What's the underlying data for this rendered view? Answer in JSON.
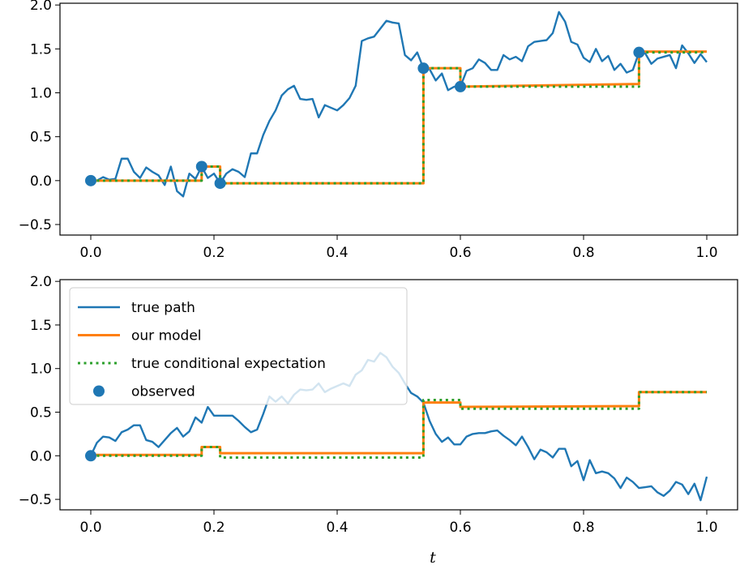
{
  "chart_data": [
    {
      "type": "line",
      "title": "",
      "xlabel": "",
      "ylabel": "",
      "xlim": [
        -0.05,
        1.05
      ],
      "ylim": [
        -0.62,
        2.02
      ],
      "xticks": [
        0.0,
        0.2,
        0.4,
        0.6,
        0.8,
        1.0
      ],
      "xtick_labels": [
        "0.0",
        "0.2",
        "0.4",
        "0.6",
        "0.8",
        "1.0"
      ],
      "yticks": [
        -0.5,
        0.0,
        0.5,
        1.0,
        1.5,
        2.0
      ],
      "ytick_labels": [
        "−0.5",
        "0.0",
        "0.5",
        "1.0",
        "1.5",
        "2.0"
      ],
      "grid": false,
      "series": [
        {
          "name": "true path",
          "kind": "line",
          "color": "#1f77b4",
          "x": [
            0.0,
            0.01,
            0.02,
            0.03,
            0.04,
            0.05,
            0.06,
            0.07,
            0.08,
            0.09,
            0.1,
            0.11,
            0.12,
            0.13,
            0.14,
            0.15,
            0.16,
            0.17,
            0.18,
            0.19,
            0.2,
            0.21,
            0.22,
            0.23,
            0.24,
            0.25,
            0.26,
            0.27,
            0.28,
            0.29,
            0.3,
            0.31,
            0.32,
            0.33,
            0.34,
            0.35,
            0.36,
            0.37,
            0.38,
            0.39,
            0.4,
            0.41,
            0.42,
            0.43,
            0.44,
            0.45,
            0.46,
            0.47,
            0.48,
            0.49,
            0.5,
            0.51,
            0.52,
            0.53,
            0.54,
            0.55,
            0.56,
            0.57,
            0.58,
            0.59,
            0.6,
            0.61,
            0.62,
            0.63,
            0.64,
            0.65,
            0.66,
            0.67,
            0.68,
            0.69,
            0.7,
            0.71,
            0.72,
            0.73,
            0.74,
            0.75,
            0.76,
            0.77,
            0.78,
            0.79,
            0.8,
            0.81,
            0.82,
            0.83,
            0.84,
            0.85,
            0.86,
            0.87,
            0.88,
            0.89,
            0.9,
            0.91,
            0.92,
            0.93,
            0.94,
            0.95,
            0.96,
            0.97,
            0.98,
            0.99,
            1.0
          ],
          "y": [
            0.0,
            0.0,
            0.04,
            0.01,
            0.02,
            0.25,
            0.25,
            0.1,
            0.03,
            0.15,
            0.1,
            0.06,
            -0.05,
            0.16,
            -0.12,
            -0.18,
            0.08,
            0.02,
            0.16,
            0.03,
            0.08,
            -0.03,
            0.08,
            0.13,
            0.1,
            0.04,
            0.31,
            0.31,
            0.52,
            0.68,
            0.8,
            0.97,
            1.04,
            1.08,
            0.93,
            0.92,
            0.93,
            0.72,
            0.86,
            0.83,
            0.8,
            0.86,
            0.94,
            1.08,
            1.59,
            1.62,
            1.64,
            1.73,
            1.82,
            1.8,
            1.79,
            1.43,
            1.37,
            1.46,
            1.28,
            1.27,
            1.14,
            1.22,
            1.03,
            1.07,
            1.07,
            1.25,
            1.28,
            1.38,
            1.34,
            1.26,
            1.26,
            1.43,
            1.38,
            1.41,
            1.36,
            1.53,
            1.58,
            1.59,
            1.6,
            1.68,
            1.92,
            1.81,
            1.58,
            1.55,
            1.4,
            1.35,
            1.5,
            1.36,
            1.42,
            1.26,
            1.33,
            1.23,
            1.26,
            1.46,
            1.45,
            1.33,
            1.39,
            1.41,
            1.43,
            1.28,
            1.54,
            1.45,
            1.34,
            1.44,
            1.35
          ]
        },
        {
          "name": "our model",
          "kind": "step",
          "color": "#ff7f0e",
          "x": [
            0.0,
            0.18,
            0.18,
            0.21,
            0.21,
            0.54,
            0.54,
            0.6,
            0.6,
            0.89,
            0.89,
            1.0
          ],
          "y": [
            0.0,
            0.0,
            0.16,
            0.16,
            -0.03,
            -0.03,
            1.28,
            1.28,
            1.07,
            1.1,
            1.47,
            1.47
          ]
        },
        {
          "name": "true conditional expectation",
          "kind": "dotted",
          "color": "#2ca02c",
          "x": [
            0.0,
            0.18,
            0.18,
            0.21,
            0.21,
            0.54,
            0.54,
            0.6,
            0.6,
            0.89,
            0.89,
            1.0
          ],
          "y": [
            0.0,
            0.0,
            0.16,
            0.16,
            -0.03,
            -0.03,
            1.28,
            1.28,
            1.07,
            1.07,
            1.46,
            1.46
          ]
        },
        {
          "name": "observed",
          "kind": "scatter",
          "color": "#1f77b4",
          "x": [
            0.0,
            0.18,
            0.21,
            0.54,
            0.6,
            0.89
          ],
          "y": [
            0.0,
            0.16,
            -0.03,
            1.28,
            1.07,
            1.46
          ]
        }
      ]
    },
    {
      "type": "line",
      "title": "",
      "xlabel": "t",
      "ylabel": "",
      "xlim": [
        -0.05,
        1.05
      ],
      "ylim": [
        -0.62,
        2.02
      ],
      "xticks": [
        0.0,
        0.2,
        0.4,
        0.6,
        0.8,
        1.0
      ],
      "xtick_labels": [
        "0.0",
        "0.2",
        "0.4",
        "0.6",
        "0.8",
        "1.0"
      ],
      "yticks": [
        -0.5,
        0.0,
        0.5,
        1.0,
        1.5,
        2.0
      ],
      "ytick_labels": [
        "−0.5",
        "0.0",
        "0.5",
        "1.0",
        "1.5",
        "2.0"
      ],
      "grid": false,
      "legend": {
        "placement": "top-left",
        "entries": [
          "true path",
          "our model",
          "true conditional expectation",
          "observed"
        ]
      },
      "series": [
        {
          "name": "true path",
          "kind": "line",
          "color": "#1f77b4",
          "x": [
            0.0,
            0.01,
            0.02,
            0.03,
            0.04,
            0.05,
            0.06,
            0.07,
            0.08,
            0.09,
            0.1,
            0.11,
            0.12,
            0.13,
            0.14,
            0.15,
            0.16,
            0.17,
            0.18,
            0.19,
            0.2,
            0.21,
            0.22,
            0.23,
            0.24,
            0.25,
            0.26,
            0.27,
            0.28,
            0.29,
            0.3,
            0.31,
            0.32,
            0.33,
            0.34,
            0.35,
            0.36,
            0.37,
            0.38,
            0.39,
            0.4,
            0.41,
            0.42,
            0.43,
            0.44,
            0.45,
            0.46,
            0.47,
            0.48,
            0.49,
            0.5,
            0.51,
            0.52,
            0.53,
            0.54,
            0.55,
            0.56,
            0.57,
            0.58,
            0.59,
            0.6,
            0.61,
            0.62,
            0.63,
            0.64,
            0.65,
            0.66,
            0.67,
            0.68,
            0.69,
            0.7,
            0.71,
            0.72,
            0.73,
            0.74,
            0.75,
            0.76,
            0.77,
            0.78,
            0.79,
            0.8,
            0.81,
            0.82,
            0.83,
            0.84,
            0.85,
            0.86,
            0.87,
            0.88,
            0.89,
            0.9,
            0.91,
            0.92,
            0.93,
            0.94,
            0.95,
            0.96,
            0.97,
            0.98,
            0.99,
            1.0
          ],
          "y": [
            0.0,
            0.15,
            0.22,
            0.21,
            0.17,
            0.27,
            0.3,
            0.35,
            0.35,
            0.18,
            0.16,
            0.1,
            0.18,
            0.26,
            0.32,
            0.22,
            0.28,
            0.44,
            0.38,
            0.56,
            0.46,
            0.46,
            0.46,
            0.46,
            0.4,
            0.33,
            0.27,
            0.3,
            0.48,
            0.68,
            0.62,
            0.68,
            0.6,
            0.7,
            0.76,
            0.75,
            0.76,
            0.83,
            0.73,
            0.77,
            0.8,
            0.83,
            0.8,
            0.93,
            0.98,
            1.1,
            1.08,
            1.18,
            1.13,
            1.02,
            0.95,
            0.83,
            0.72,
            0.68,
            0.61,
            0.4,
            0.25,
            0.16,
            0.21,
            0.13,
            0.13,
            0.22,
            0.25,
            0.26,
            0.26,
            0.28,
            0.29,
            0.23,
            0.18,
            0.12,
            0.22,
            0.1,
            -0.04,
            0.07,
            0.04,
            -0.02,
            0.08,
            0.08,
            -0.12,
            -0.06,
            -0.28,
            -0.05,
            -0.2,
            -0.18,
            -0.2,
            -0.26,
            -0.37,
            -0.25,
            -0.3,
            -0.37,
            -0.36,
            -0.35,
            -0.42,
            -0.46,
            -0.4,
            -0.3,
            -0.33,
            -0.44,
            -0.32,
            -0.51,
            -0.24
          ]
        },
        {
          "name": "our model",
          "kind": "step",
          "color": "#ff7f0e",
          "x": [
            0.0,
            0.18,
            0.18,
            0.21,
            0.21,
            0.54,
            0.54,
            0.6,
            0.6,
            0.89,
            0.89,
            1.0
          ],
          "y": [
            0.01,
            0.01,
            0.1,
            0.1,
            0.03,
            0.03,
            0.61,
            0.61,
            0.56,
            0.57,
            0.73,
            0.73
          ]
        },
        {
          "name": "true conditional expectation",
          "kind": "dotted",
          "color": "#2ca02c",
          "x": [
            0.0,
            0.18,
            0.18,
            0.21,
            0.21,
            0.54,
            0.54,
            0.6,
            0.6,
            0.89,
            0.89,
            1.0
          ],
          "y": [
            0.0,
            0.0,
            0.1,
            0.1,
            -0.02,
            -0.02,
            0.64,
            0.64,
            0.54,
            0.54,
            0.73,
            0.73
          ]
        },
        {
          "name": "observed",
          "kind": "scatter",
          "color": "#1f77b4",
          "x": [
            0.0
          ],
          "y": [
            0.0
          ]
        }
      ]
    }
  ]
}
